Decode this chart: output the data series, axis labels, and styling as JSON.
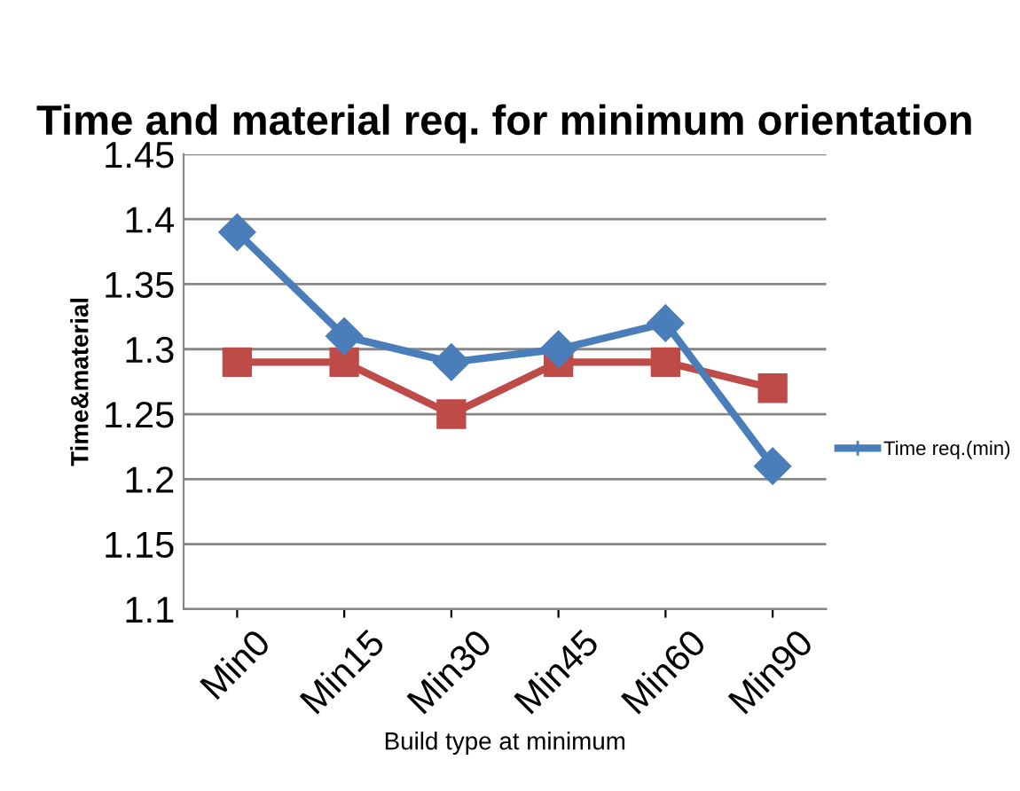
{
  "chart_data": {
    "type": "line",
    "title": "Time and material req. for minimum orientation",
    "xlabel": "Build type at minimum",
    "ylabel": "Time&material",
    "categories": [
      "Min0",
      "Min15",
      "Min30",
      "Min45",
      "Min60",
      "Min90"
    ],
    "series": [
      {
        "name": "Time req.(min)",
        "color": "#4a7ebb",
        "marker": "diamond",
        "values": [
          1.39,
          1.31,
          1.29,
          1.3,
          1.32,
          1.21
        ]
      },
      {
        "color": "#be4b48",
        "marker": "square",
        "values": [
          1.29,
          1.29,
          1.25,
          1.29,
          1.29,
          1.27
        ]
      }
    ],
    "ylim": [
      1.1,
      1.45
    ],
    "yticks": [
      1.1,
      1.15,
      1.2,
      1.25,
      1.3,
      1.35,
      1.4,
      1.45
    ],
    "grid": "y",
    "legend": "right",
    "line_style": "solid"
  }
}
